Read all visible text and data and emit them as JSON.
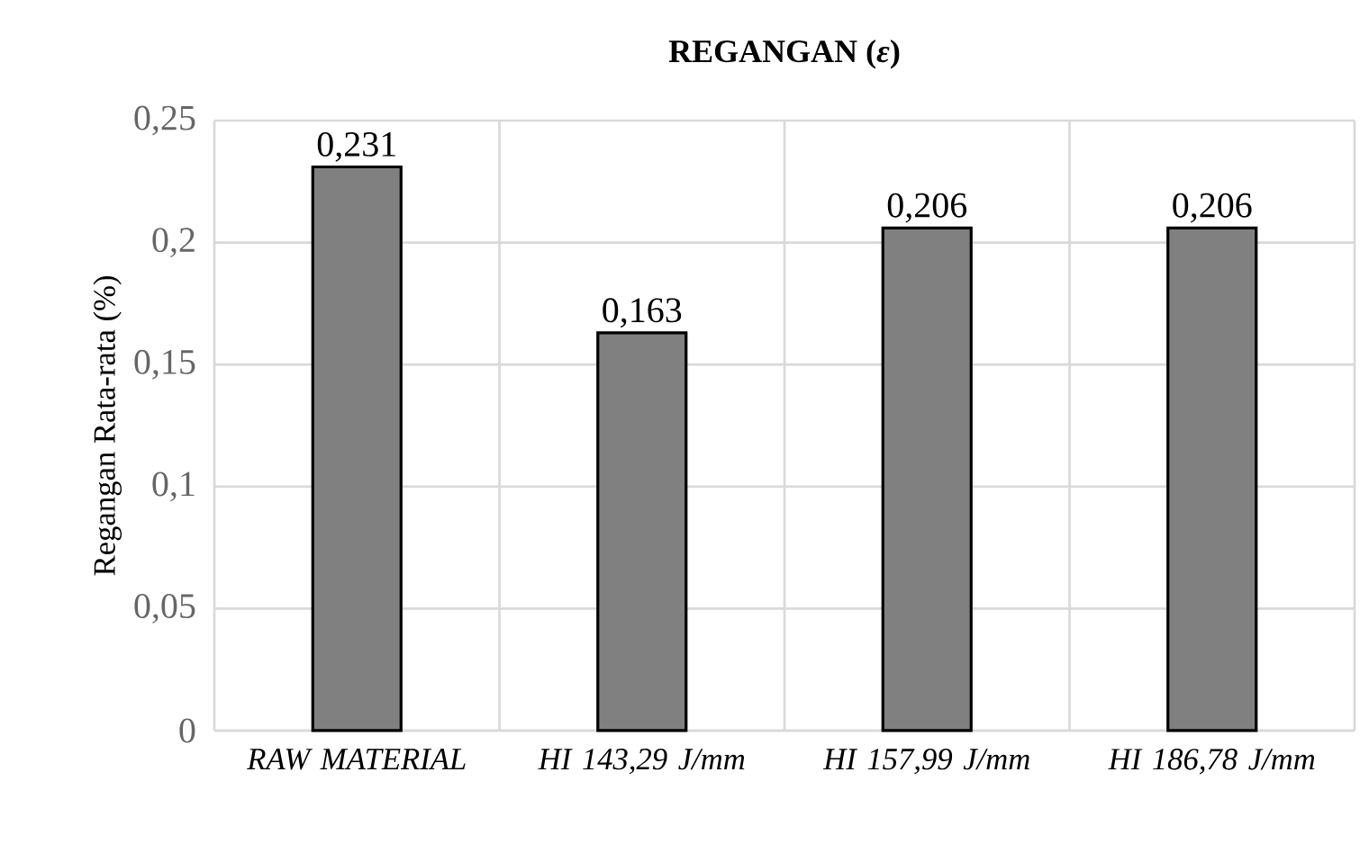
{
  "chart_data": {
    "type": "bar",
    "title": "REGANGAN (*ε*)",
    "ylabel": "Regangan Rata-rata (%)",
    "categories": [
      "RAW MATERIAL",
      "HI 143,29 J/mm",
      "HI 157,99 J/mm",
      "HI 186,78 J/mm"
    ],
    "values": [
      0.231,
      0.163,
      0.206,
      0.206
    ],
    "value_labels": [
      "0,231",
      "0,163",
      "0,206",
      "0,206"
    ],
    "color": "#808080",
    "ylim": [
      0,
      0.25
    ],
    "yticks": [
      {
        "value": 0,
        "label": "0"
      },
      {
        "value": 0.05,
        "label": "0,05"
      },
      {
        "value": 0.1,
        "label": "0,1"
      },
      {
        "value": 0.15,
        "label": "0,15"
      },
      {
        "value": 0.2,
        "label": "0,2"
      },
      {
        "value": 0.25,
        "label": "0,25"
      }
    ],
    "grid": true
  }
}
